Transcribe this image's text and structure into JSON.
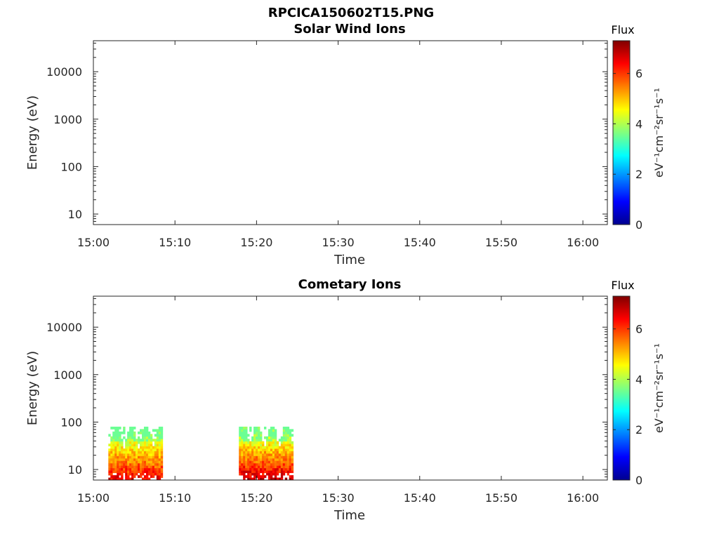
{
  "figure_title": "RPCICA150602T15.PNG",
  "chart_data": [
    {
      "type": "heatmap",
      "title": "Solar Wind Ions",
      "xlabel": "Time",
      "ylabel": "Energy (eV)",
      "x_range": [
        "15:00",
        "16:03"
      ],
      "x_ticks": [
        "15:00",
        "15:10",
        "15:20",
        "15:30",
        "15:40",
        "15:50",
        "16:00"
      ],
      "y_scale": "log",
      "y_range": [
        6,
        45000
      ],
      "y_ticks": [
        "10",
        "100",
        "1000",
        "10000"
      ],
      "colorbar": {
        "title": "Flux",
        "label": "eV⁻¹cm⁻²sr⁻¹s⁻¹",
        "range": [
          0,
          7.3
        ],
        "ticks": [
          "0",
          "2",
          "4",
          "6"
        ],
        "colormap": "jet"
      },
      "data_blocks": []
    },
    {
      "type": "heatmap",
      "title": "Cometary Ions",
      "xlabel": "Time",
      "ylabel": "Energy (eV)",
      "x_range": [
        "15:00",
        "16:03"
      ],
      "x_ticks": [
        "15:00",
        "15:10",
        "15:20",
        "15:30",
        "15:40",
        "15:50",
        "16:00"
      ],
      "y_scale": "log",
      "y_range": [
        6,
        45000
      ],
      "y_ticks": [
        "10",
        "100",
        "1000",
        "10000"
      ],
      "colorbar": {
        "title": "Flux",
        "label": "eV⁻¹cm⁻²sr⁻¹s⁻¹",
        "range": [
          0,
          7.3
        ],
        "ticks": [
          "0",
          "2",
          "4",
          "6"
        ],
        "colormap": "jet"
      },
      "data_blocks": [
        {
          "start": "15:01:50",
          "end": "15:08:30",
          "energy_min": 6,
          "energy_max": 80,
          "flux_range": [
            3.5,
            7.0
          ]
        },
        {
          "start": "15:17:50",
          "end": "15:24:30",
          "energy_min": 6,
          "energy_max": 80,
          "flux_range": [
            3.5,
            7.3
          ]
        }
      ]
    }
  ]
}
